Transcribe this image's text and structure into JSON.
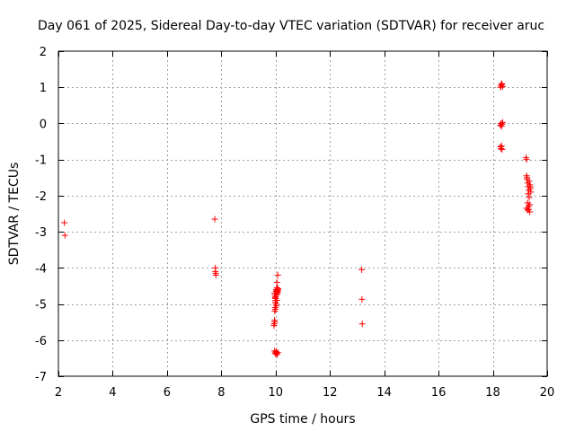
{
  "chart_data": {
    "type": "scatter",
    "title": "Day 061 of 2025, Sidereal Day-to-day VTEC variation (SDTVAR) for receiver aruc",
    "xlabel": "GPS time / hours",
    "ylabel": "SDTVAR / TECUs",
    "xlim": [
      2,
      20
    ],
    "ylim": [
      -7,
      2
    ],
    "xticks": [
      2,
      4,
      6,
      8,
      10,
      12,
      14,
      16,
      18,
      20
    ],
    "yticks": [
      -7,
      -6,
      -5,
      -4,
      -3,
      -2,
      -1,
      0,
      1,
      2
    ],
    "xtick_labels": [
      "2",
      "4",
      "6",
      "8",
      "10",
      "12",
      "14",
      "16",
      "18",
      "20"
    ],
    "ytick_labels": [
      "-7",
      "-6",
      "-5",
      "-4",
      "-3",
      "-2",
      "-1",
      "0",
      "1",
      "2"
    ],
    "grid": true,
    "marker": "+",
    "color": "#ff0000",
    "series": [
      {
        "name": "aruc",
        "x": [
          2.22,
          2.24,
          7.76,
          7.78,
          7.78,
          7.79,
          7.8,
          9.94,
          9.96,
          9.97,
          9.98,
          9.99,
          10.0,
          10.01,
          10.02,
          10.03,
          10.04,
          10.05,
          10.06,
          10.07,
          10.08,
          10.09,
          10.05,
          10.08,
          9.96,
          9.98,
          10.0,
          10.01,
          10.03,
          10.05,
          10.07,
          10.08,
          9.95,
          9.97,
          9.99,
          10.0,
          9.98,
          10.02,
          9.96,
          9.98,
          10.0,
          10.02,
          10.04,
          10.06,
          10.08,
          13.17,
          13.18,
          13.19,
          18.28,
          18.3,
          18.32,
          18.34,
          18.36,
          18.28,
          18.3,
          18.32,
          18.34,
          18.36,
          18.28,
          18.3,
          18.32,
          18.34,
          19.22,
          19.24,
          19.24,
          19.26,
          19.28,
          19.3,
          19.32,
          19.34,
          19.36,
          19.38,
          19.4,
          19.26,
          19.3,
          19.34,
          19.38,
          19.28,
          19.32,
          19.36,
          19.24,
          19.28,
          19.32,
          19.36
        ],
        "y": [
          -2.75,
          -3.1,
          -2.65,
          -4.0,
          -4.1,
          -4.15,
          -4.2,
          -5.6,
          -5.45,
          -5.2,
          -5.1,
          -4.95,
          -4.8,
          -4.7,
          -4.65,
          -4.6,
          -4.62,
          -4.55,
          -4.68,
          -4.72,
          -4.64,
          -4.58,
          -4.4,
          -4.2,
          -4.7,
          -4.75,
          -4.85,
          -5.0,
          -5.05,
          -4.9,
          -4.66,
          -4.6,
          -5.55,
          -5.5,
          -5.15,
          -4.9,
          -4.82,
          -4.75,
          -6.3,
          -6.35,
          -6.38,
          -6.32,
          -6.36,
          -6.4,
          -6.34,
          -4.05,
          -4.87,
          -5.55,
          1.0,
          1.05,
          1.1,
          1.08,
          1.02,
          -0.05,
          0.0,
          -0.08,
          -0.02,
          0.03,
          -0.65,
          -0.7,
          -0.62,
          -0.72,
          -0.95,
          -1.0,
          -1.45,
          -1.55,
          -1.65,
          -1.75,
          -1.85,
          -1.6,
          -1.7,
          -1.8,
          -1.9,
          -1.5,
          -1.95,
          -2.05,
          -1.75,
          -2.2,
          -2.3,
          -2.25,
          -2.35,
          -2.4,
          -2.38,
          -2.45
        ]
      }
    ]
  }
}
